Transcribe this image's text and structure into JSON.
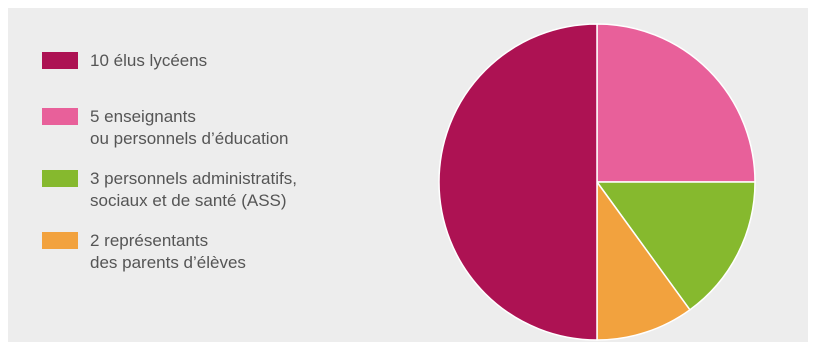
{
  "chart_data": {
    "type": "pie",
    "title": "",
    "start_angle": "top",
    "direction": "clockwise",
    "legend_position": "left",
    "slices": [
      {
        "value": 5,
        "color": "#e8609a",
        "lines": [
          "5 enseignants",
          "ou personnels d’éducation"
        ]
      },
      {
        "value": 3,
        "color": "#86b92e",
        "lines": [
          "3 personnels administratifs,",
          "sociaux et de santé (ASS)"
        ]
      },
      {
        "value": 2,
        "color": "#f2a23e",
        "lines": [
          "2 représentants",
          "des parents d’élèves"
        ]
      },
      {
        "value": 10,
        "color": "#ad1253",
        "lines": [
          "10 élus lycéens"
        ]
      }
    ],
    "legend_order": [
      3,
      0,
      1,
      2
    ]
  }
}
